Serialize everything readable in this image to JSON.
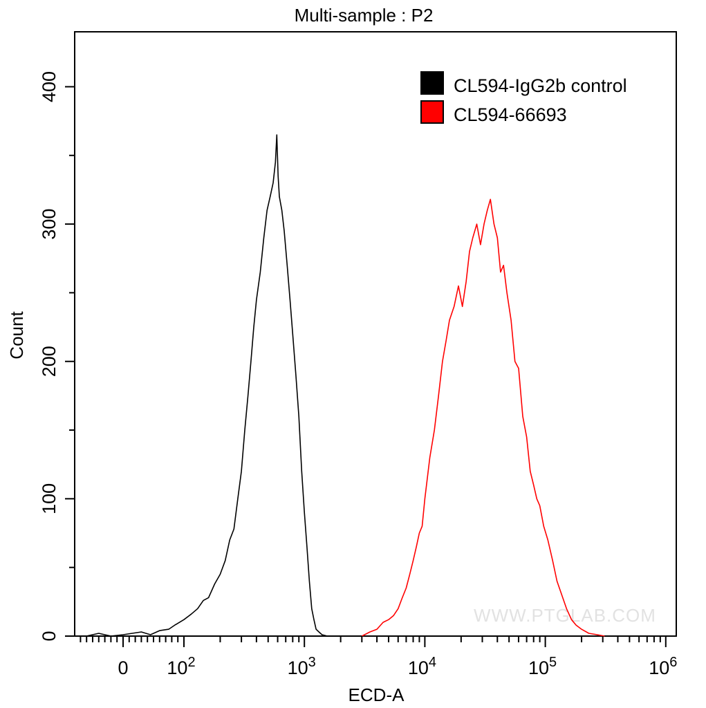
{
  "chart_data": {
    "type": "line",
    "title": "Multi-sample : P2",
    "xlabel": "ECD-A",
    "ylabel": "Count",
    "x_scale": "biexponential (linear near 0, log above 10^2)",
    "xlim": [
      -80,
      1000000
    ],
    "ylim": [
      0,
      440
    ],
    "x_tick_labels": [
      {
        "value": 0,
        "base": "0",
        "exp": ""
      },
      {
        "value": 100,
        "base": "10",
        "exp": "2"
      },
      {
        "value": 1000,
        "base": "10",
        "exp": "3"
      },
      {
        "value": 10000,
        "base": "10",
        "exp": "4"
      },
      {
        "value": 100000,
        "base": "10",
        "exp": "5"
      },
      {
        "value": 1000000,
        "base": "10",
        "exp": "6"
      }
    ],
    "y_ticks": [
      0,
      100,
      200,
      300,
      400
    ],
    "y_tick_labels": [
      "0",
      "100",
      "200",
      "300",
      "400"
    ],
    "legend_position": "top-right",
    "grid": false,
    "series": [
      {
        "name": "CL594-IgG2b control",
        "color": "#000000",
        "x": [
          -60,
          -40,
          -20,
          0,
          15,
          30,
          45,
          60,
          75,
          85,
          100,
          115,
          130,
          145,
          160,
          180,
          200,
          220,
          240,
          260,
          280,
          300,
          320,
          340,
          360,
          380,
          400,
          430,
          460,
          490,
          520,
          550,
          575,
          590,
          605,
          620,
          650,
          680,
          720,
          760,
          800,
          850,
          900,
          950,
          1000,
          1050,
          1100,
          1150,
          1200,
          1250,
          1320,
          1400,
          1550,
          1700
        ],
        "y": [
          0,
          2,
          0,
          1,
          2,
          3,
          1,
          4,
          5,
          8,
          12,
          16,
          20,
          26,
          28,
          38,
          45,
          55,
          70,
          78,
          100,
          120,
          150,
          175,
          200,
          225,
          245,
          265,
          290,
          310,
          320,
          330,
          345,
          365,
          335,
          320,
          310,
          295,
          270,
          245,
          220,
          190,
          160,
          120,
          90,
          65,
          40,
          20,
          12,
          5,
          3,
          1,
          0,
          0
        ]
      },
      {
        "name": "CL594-66693",
        "color": "#ff0000",
        "x": [
          3000,
          3500,
          4000,
          4500,
          5000,
          5500,
          6000,
          6500,
          7000,
          7500,
          8000,
          8500,
          9000,
          9500,
          10000,
          11000,
          12000,
          13000,
          14000,
          15000,
          16000,
          17500,
          19000,
          20500,
          22000,
          23500,
          25000,
          27000,
          29000,
          31000,
          33000,
          35000,
          37500,
          40000,
          42500,
          45000,
          48000,
          52000,
          56000,
          60000,
          65000,
          70000,
          75000,
          80000,
          85000,
          90000,
          97000,
          105000,
          115000,
          125000,
          137000,
          150000,
          165000,
          180000,
          200000,
          230000,
          270000,
          310000
        ],
        "y": [
          0,
          3,
          5,
          10,
          12,
          15,
          20,
          28,
          35,
          45,
          55,
          65,
          75,
          80,
          100,
          130,
          150,
          175,
          200,
          215,
          230,
          240,
          255,
          240,
          258,
          280,
          290,
          300,
          285,
          300,
          310,
          318,
          300,
          290,
          265,
          270,
          250,
          230,
          200,
          195,
          160,
          145,
          120,
          110,
          100,
          95,
          80,
          70,
          55,
          40,
          30,
          20,
          12,
          8,
          5,
          2,
          1,
          0
        ]
      }
    ],
    "watermark": "WWW.PTGLAB.COM"
  }
}
